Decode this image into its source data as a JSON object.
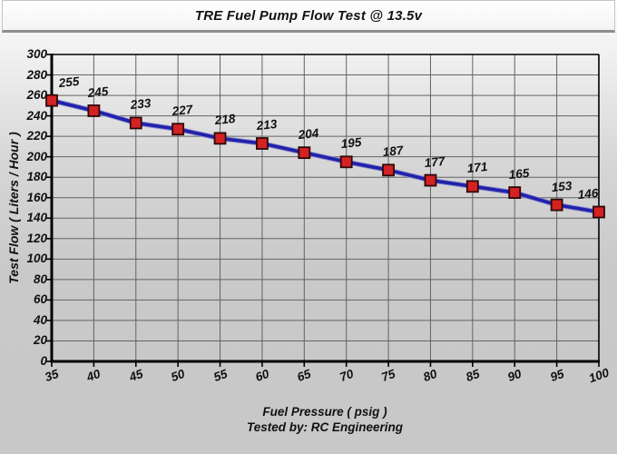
{
  "title": "TRE Fuel Pump Flow Test @ 13.5v",
  "chart_data": {
    "type": "line",
    "x": [
      35,
      40,
      45,
      50,
      55,
      60,
      65,
      70,
      75,
      80,
      85,
      90,
      95,
      100
    ],
    "series": [
      {
        "name": "Test Flow",
        "values": [
          255,
          245,
          233,
          227,
          218,
          213,
          204,
          195,
          187,
          177,
          171,
          165,
          153,
          146
        ]
      }
    ],
    "title": "TRE Fuel Pump Flow Test @ 13.5v",
    "xlabel": "Fuel Pressure ( psig )",
    "ylabel": "Test Flow ( Liters / Hour )",
    "footer": "Tested by: RC Engineering",
    "xlim": [
      35,
      100
    ],
    "ylim": [
      0,
      300
    ],
    "x_tick_step": 5,
    "y_tick_step": 20,
    "grid": true,
    "legend": "none",
    "data_labels": true,
    "colors": {
      "line": "#2121aa",
      "line_halo": "#8a8ad0",
      "marker_fill": "#d42222",
      "marker_border": "#2e0808",
      "grid": "#636363",
      "axis": "#000000",
      "text": "#111111",
      "panel": "#ffffff"
    }
  }
}
